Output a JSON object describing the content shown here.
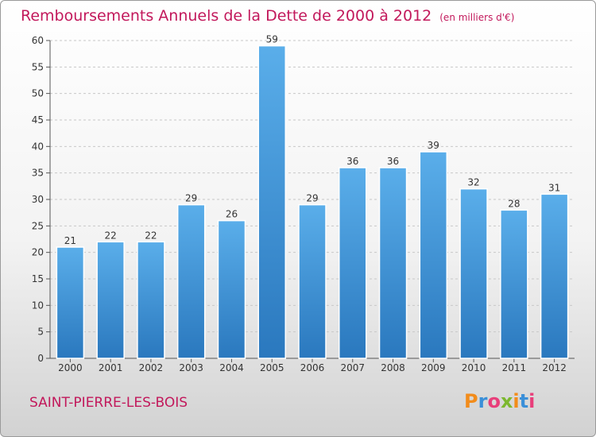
{
  "header": {
    "title": "Remboursements Annuels de la Dette de 2000 à 2012",
    "unit": "(en milliers d'€)"
  },
  "footer": {
    "commune": "SAINT-PIERRE-LES-BOIS",
    "logo_letters": [
      "P",
      "r",
      "o",
      "x",
      "i",
      "t",
      "i"
    ],
    "logo_colors": [
      "#f28c1b",
      "#3a8fd8",
      "#e83e7a",
      "#7cb82f",
      "#f28c1b",
      "#3a8fd8",
      "#e83e7a"
    ]
  },
  "chart_data": {
    "type": "bar",
    "title": "Remboursements Annuels de la Dette de 2000 à 2012",
    "subtitle": "(en milliers d'€)",
    "xlabel": "",
    "ylabel": "",
    "categories": [
      "2000",
      "2001",
      "2002",
      "2003",
      "2004",
      "2005",
      "2006",
      "2007",
      "2008",
      "2009",
      "2010",
      "2011",
      "2012"
    ],
    "values": [
      21,
      22,
      22,
      29,
      26,
      59,
      29,
      36,
      36,
      39,
      32,
      28,
      31
    ],
    "ylim": [
      0,
      60
    ],
    "yticks": [
      0,
      5,
      10,
      15,
      20,
      25,
      30,
      35,
      40,
      45,
      50,
      55,
      60
    ],
    "grid": true,
    "data_labels": true,
    "bar_color": "#3d8fd4",
    "legend": "none"
  }
}
